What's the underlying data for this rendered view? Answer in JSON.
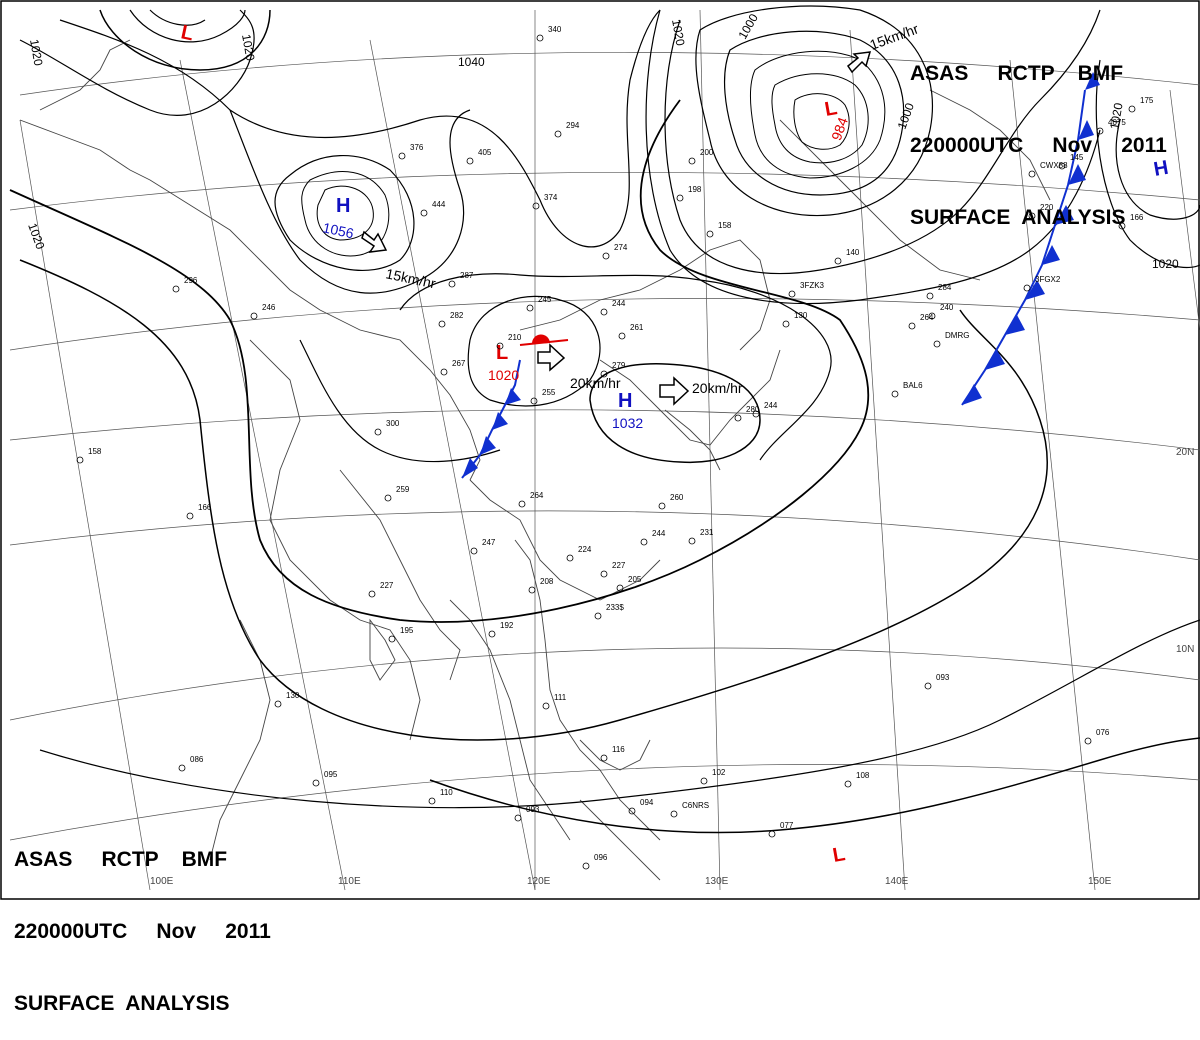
{
  "header": {
    "line1": "ASAS     RCTP    BMF",
    "line2": "220000UTC     Nov     2011",
    "line3": "SURFACE  ANALYSIS"
  },
  "isobar_labels": [
    "1020",
    "1020",
    "1020",
    "1040",
    "1020",
    "1000",
    "1000",
    "1020",
    "1020"
  ],
  "pressure_centers": [
    {
      "type": "L",
      "value": "",
      "color": "#e00000"
    },
    {
      "type": "H",
      "value": "1056",
      "color": "#1010c0"
    },
    {
      "type": "L",
      "value": "984",
      "color": "#e00000"
    },
    {
      "type": "L",
      "value": "1020",
      "color": "#e00000"
    },
    {
      "type": "H",
      "value": "1032",
      "color": "#1010c0"
    },
    {
      "type": "H",
      "value": "",
      "color": "#1010c0"
    },
    {
      "type": "L",
      "value": "",
      "color": "#e00000"
    }
  ],
  "motion_labels": [
    "15km/hr",
    "15km/hr",
    "20km/hr",
    "20km/hr"
  ],
  "longitude_labels": [
    "100E",
    "110E",
    "120E",
    "130E",
    "140E",
    "150E"
  ],
  "latitude_labels": [
    "20N",
    "10N"
  ],
  "station_values": [
    "340",
    "294",
    "405",
    "376",
    "444",
    "374",
    "274",
    "245",
    "244",
    "261",
    "210",
    "279",
    "255",
    "287",
    "282",
    "267",
    "300",
    "296",
    "246",
    "158",
    "166",
    "259",
    "264",
    "247",
    "227",
    "224",
    "195",
    "192",
    "208",
    "227",
    "205",
    "260",
    "244",
    "231",
    "233$",
    "130",
    "086",
    "095",
    "110",
    "093",
    "096",
    "094",
    "102",
    "108",
    "077",
    "093",
    "076",
    "116",
    "111",
    "264",
    "175",
    "145",
    "166",
    "220",
    "140",
    "158",
    "198",
    "200",
    "130",
    "244",
    "280",
    "240",
    "4075",
    "284",
    "CWX88",
    "DMRG",
    "BAL6",
    "3FZK3",
    "C6NRS",
    "3FGX2"
  ]
}
